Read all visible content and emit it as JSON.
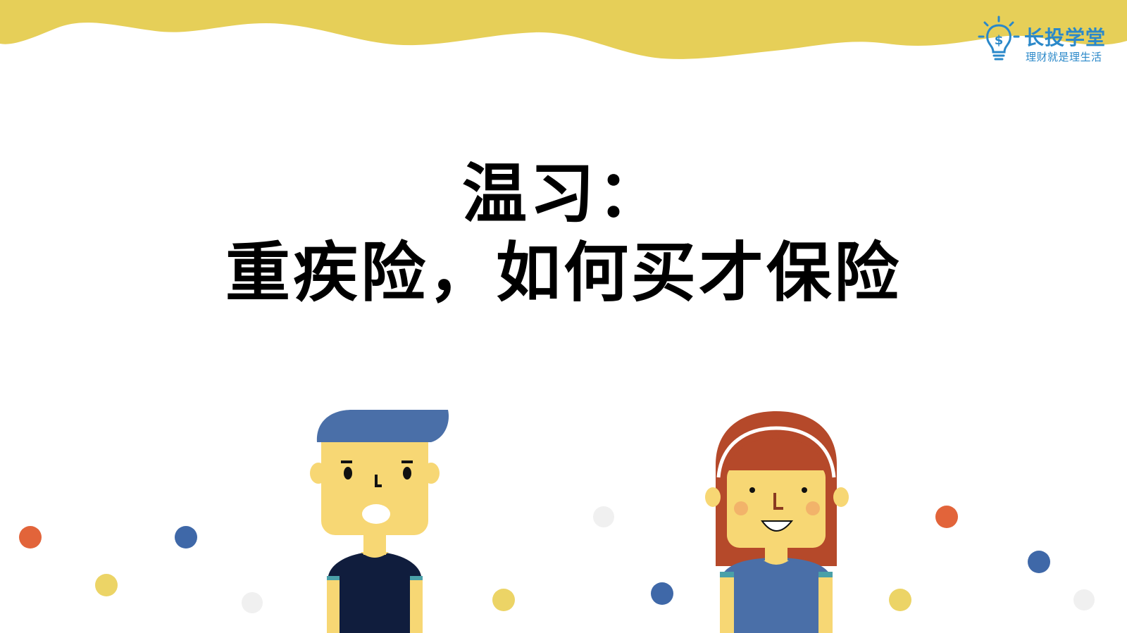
{
  "header": {
    "logo_icon": "lightbulb-dollar-icon",
    "brand_name": "长投学堂",
    "slogan": "理财就是理生活"
  },
  "slide": {
    "title_line1": "温习：",
    "title_line2": "重疾险，如何买才保险"
  },
  "colors": {
    "wave": "#e6cf58",
    "brand_blue": "#2a88c9",
    "dot_orange": "#e2643a",
    "dot_blue": "#3f68a8",
    "dot_yellow": "#ecd466",
    "dot_gray": "#f0f0f0"
  },
  "illustration": {
    "left_character": "boy-character",
    "right_character": "girl-character"
  }
}
